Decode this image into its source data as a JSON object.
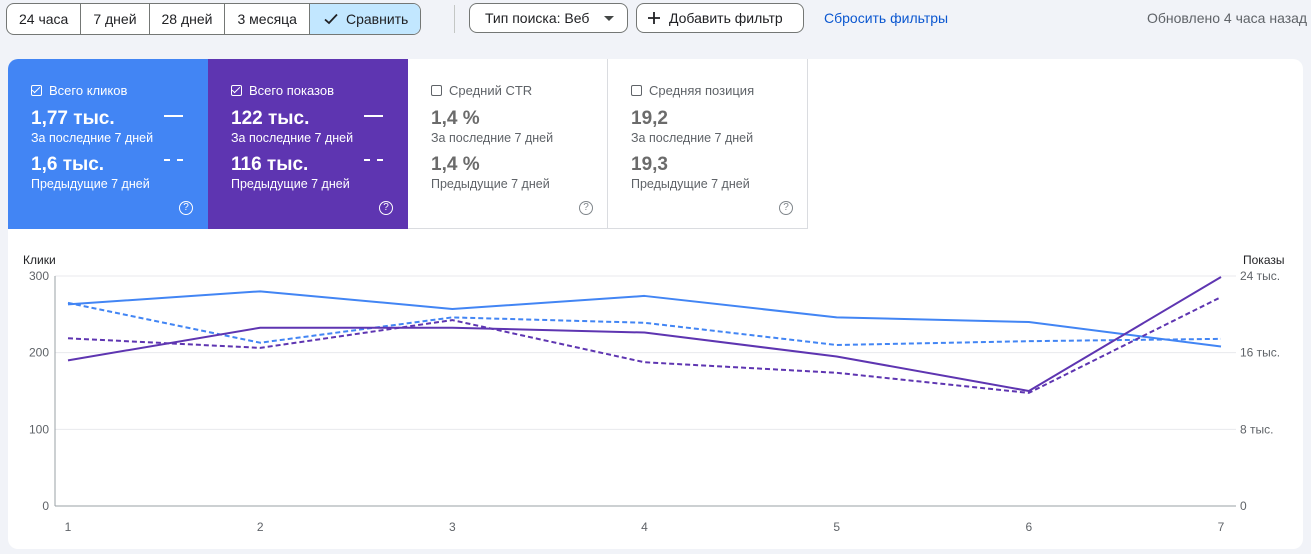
{
  "toolbar": {
    "ranges": [
      "24 часа",
      "7 дней",
      "28 дней",
      "3 месяца"
    ],
    "compare_label": "Сравнить",
    "search_type": "Тип поиска: Веб",
    "add_filter": "Добавить фильтр",
    "reset_filters": "Сбросить фильтры",
    "updated": "Обновлено 4 часа назад"
  },
  "cards": [
    {
      "title": "Всего кликов",
      "checked": true,
      "current": "1,77 тыс.",
      "current_label": "За последние 7 дней",
      "previous": "1,6 тыс.",
      "previous_label": "Предыдущие 7 дней",
      "color": "#4285f4"
    },
    {
      "title": "Всего показов",
      "checked": true,
      "current": "122 тыс.",
      "current_label": "За последние 7 дней",
      "previous": "116 тыс.",
      "previous_label": "Предыдущие 7 дней",
      "color": "#5e35b1"
    },
    {
      "title": "Средний CTR",
      "checked": false,
      "current": "1,4 %",
      "current_label": "За последние 7 дней",
      "previous": "1,4 %",
      "previous_label": "Предыдущие 7 дней"
    },
    {
      "title": "Средняя позиция",
      "checked": false,
      "current": "19,2",
      "current_label": "За последние 7 дней",
      "previous": "19,3",
      "previous_label": "Предыдущие 7 дней"
    }
  ],
  "chart_data": {
    "type": "line",
    "left_axis_title": "Клики",
    "right_axis_title": "Показы",
    "x": [
      1,
      2,
      3,
      4,
      5,
      6,
      7
    ],
    "left_ticks": [
      "300",
      "200",
      "100",
      "0"
    ],
    "right_ticks": [
      "24 тыс.",
      "16 тыс.",
      "8 тыс.",
      "0"
    ],
    "ylim_left": [
      0,
      300
    ],
    "ylim_right": [
      0,
      24000
    ],
    "series": [
      {
        "axis": "left",
        "dashed": false,
        "color": "#4285f4",
        "values": [
          263,
          280,
          257,
          274,
          246,
          240,
          208
        ]
      },
      {
        "axis": "left",
        "dashed": true,
        "color": "#4285f4",
        "values": [
          265,
          213,
          246,
          239,
          210,
          215,
          218
        ]
      },
      {
        "axis": "right",
        "dashed": false,
        "color": "#5e35b1",
        "values": [
          15200,
          18600,
          18600,
          18100,
          15600,
          12000,
          23900
        ]
      },
      {
        "axis": "right",
        "dashed": true,
        "color": "#5e35b1",
        "values": [
          17500,
          16500,
          19400,
          15000,
          13900,
          11800,
          21800
        ]
      }
    ]
  }
}
